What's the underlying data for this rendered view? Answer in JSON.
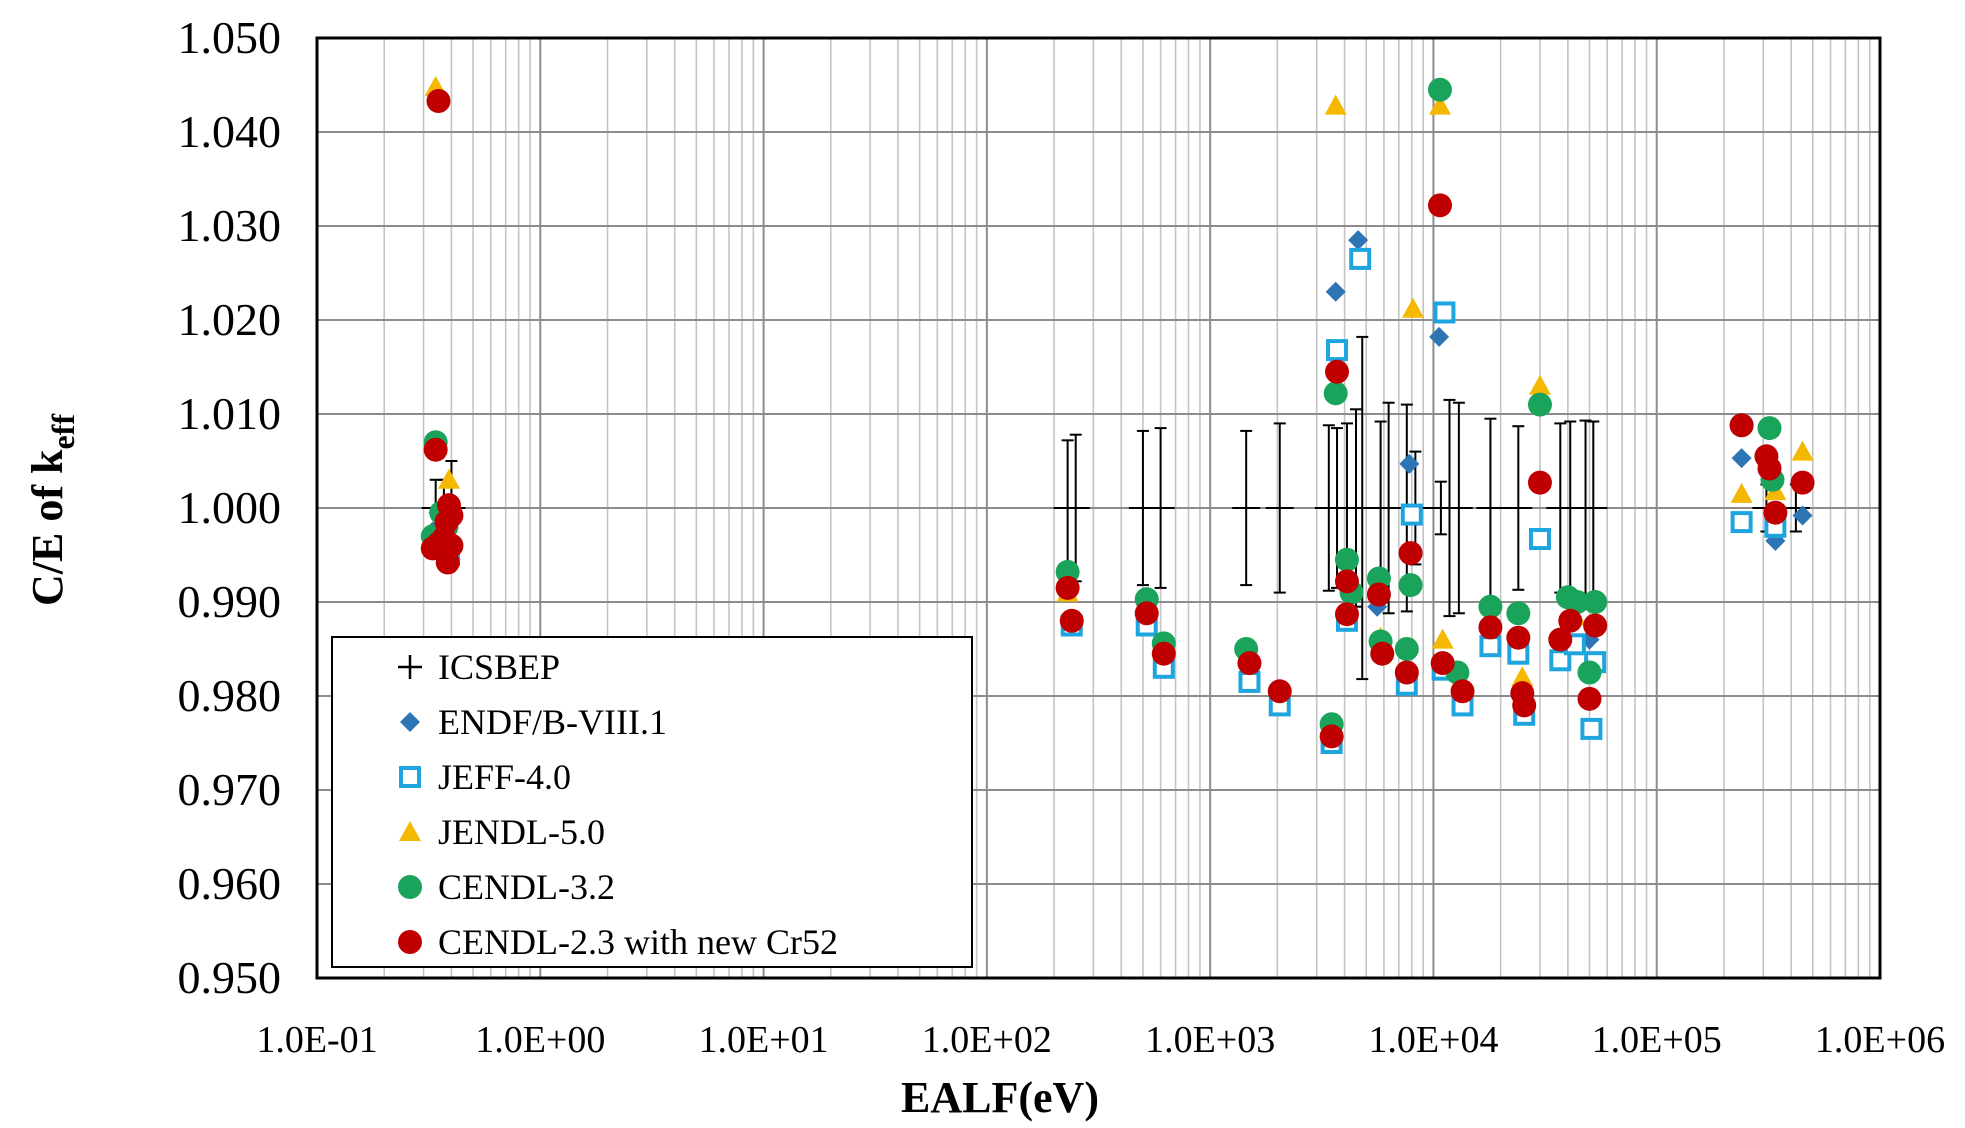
{
  "chart_data": {
    "type": "scatter",
    "title": "",
    "xlabel": "EALF(eV)",
    "ylabel_main": "C/E of k",
    "ylabel_sub": "eff",
    "xscale": "log",
    "xlim": [
      0.1,
      1000000
    ],
    "ylim": [
      0.95,
      1.05
    ],
    "grid": true,
    "legend_position": "lower-left",
    "x_tick_labels": [
      "1.0E-01",
      "1.0E+00",
      "1.0E+01",
      "1.0E+02",
      "1.0E+03",
      "1.0E+04",
      "1.0E+05",
      "1.0E+06"
    ],
    "x_tick_values": [
      0.1,
      1,
      10,
      100,
      1000,
      10000,
      100000,
      1000000
    ],
    "y_tick_labels": [
      "0.950",
      "0.960",
      "0.970",
      "0.980",
      "0.990",
      "1.000",
      "1.010",
      "1.020",
      "1.030",
      "1.040",
      "1.050"
    ],
    "y_tick_values": [
      0.95,
      0.96,
      0.97,
      0.98,
      0.99,
      1.0,
      1.01,
      1.02,
      1.03,
      1.04,
      1.05
    ],
    "icsbep": [
      {
        "x": 0.34,
        "y": 1.0,
        "err": 0.003
      },
      {
        "x": 0.37,
        "y": 1.0,
        "err": 0.003
      },
      {
        "x": 0.4,
        "y": 1.0,
        "err": 0.005
      },
      {
        "x": 230,
        "y": 1.0,
        "err": 0.0072
      },
      {
        "x": 250,
        "y": 1.0,
        "err": 0.0078
      },
      {
        "x": 500,
        "y": 1.0,
        "err": 0.0082
      },
      {
        "x": 600,
        "y": 1.0,
        "err": 0.0085
      },
      {
        "x": 1450,
        "y": 1.0,
        "err": 0.0082
      },
      {
        "x": 2050,
        "y": 1.0,
        "err": 0.009
      },
      {
        "x": 3400,
        "y": 1.0,
        "err": 0.0088
      },
      {
        "x": 3700,
        "y": 1.0,
        "err": 0.0085
      },
      {
        "x": 4100,
        "y": 1.0,
        "err": 0.009
      },
      {
        "x": 4500,
        "y": 1.0,
        "err": 0.0105
      },
      {
        "x": 4800,
        "y": 1.0,
        "err": 0.0182
      },
      {
        "x": 5800,
        "y": 1.0,
        "err": 0.0092
      },
      {
        "x": 6300,
        "y": 1.0,
        "err": 0.0112
      },
      {
        "x": 7600,
        "y": 1.0,
        "err": 0.011
      },
      {
        "x": 8300,
        "y": 1.0,
        "err": 0.006
      },
      {
        "x": 10800,
        "y": 1.0,
        "err": 0.0028
      },
      {
        "x": 11800,
        "y": 1.0,
        "err": 0.0115
      },
      {
        "x": 13000,
        "y": 1.0,
        "err": 0.0112
      },
      {
        "x": 18000,
        "y": 1.0,
        "err": 0.0095
      },
      {
        "x": 24000,
        "y": 1.0,
        "err": 0.0087
      },
      {
        "x": 37000,
        "y": 1.0,
        "err": 0.009
      },
      {
        "x": 41000,
        "y": 1.0,
        "err": 0.0092
      },
      {
        "x": 48000,
        "y": 1.0,
        "err": 0.0093
      },
      {
        "x": 52000,
        "y": 1.0,
        "err": 0.0092
      },
      {
        "x": 310000,
        "y": 1.0,
        "err": 0.0025
      },
      {
        "x": 420000,
        "y": 1.0,
        "err": 0.0025
      }
    ],
    "series": [
      {
        "name": "ENDF/B-VIII.1",
        "marker": "diamond",
        "color": "#2e75b6",
        "points": [
          {
            "x": 0.33,
            "y": 0.9975
          },
          {
            "x": 0.35,
            "y": 0.9995
          },
          {
            "x": 0.38,
            "y": 0.998
          },
          {
            "x": 0.39,
            "y": 0.996
          },
          {
            "x": 240,
            "y": 0.9875
          },
          {
            "x": 520,
            "y": 0.988
          },
          {
            "x": 620,
            "y": 0.9845
          },
          {
            "x": 3650,
            "y": 1.023
          },
          {
            "x": 4600,
            "y": 1.0285
          },
          {
            "x": 7800,
            "y": 1.0047
          },
          {
            "x": 10600,
            "y": 1.0182
          },
          {
            "x": 5600,
            "y": 0.9895
          },
          {
            "x": 50000,
            "y": 0.986
          },
          {
            "x": 240000,
            "y": 1.0053
          },
          {
            "x": 340000,
            "y": 0.9965
          },
          {
            "x": 450000,
            "y": 0.9992
          }
        ]
      },
      {
        "name": "JEFF-4.0",
        "marker": "square",
        "color": "#1ea5df",
        "points": [
          {
            "x": 0.36,
            "y": 0.9965
          },
          {
            "x": 0.39,
            "y": 0.995
          },
          {
            "x": 240,
            "y": 0.9875
          },
          {
            "x": 520,
            "y": 0.9875
          },
          {
            "x": 620,
            "y": 0.983
          },
          {
            "x": 1500,
            "y": 0.9815
          },
          {
            "x": 2050,
            "y": 0.979
          },
          {
            "x": 3500,
            "y": 0.975
          },
          {
            "x": 3700,
            "y": 1.0168
          },
          {
            "x": 4100,
            "y": 0.988
          },
          {
            "x": 4700,
            "y": 1.0265
          },
          {
            "x": 7600,
            "y": 0.9812
          },
          {
            "x": 8000,
            "y": 0.9993
          },
          {
            "x": 11200,
            "y": 1.0208
          },
          {
            "x": 11000,
            "y": 0.9828
          },
          {
            "x": 13500,
            "y": 0.979
          },
          {
            "x": 18000,
            "y": 0.9853
          },
          {
            "x": 24000,
            "y": 0.9845
          },
          {
            "x": 25500,
            "y": 0.978
          },
          {
            "x": 30000,
            "y": 0.9967
          },
          {
            "x": 37000,
            "y": 0.9838
          },
          {
            "x": 43000,
            "y": 0.9855
          },
          {
            "x": 51000,
            "y": 0.9765
          },
          {
            "x": 53000,
            "y": 0.9836
          },
          {
            "x": 240000,
            "y": 0.9985
          },
          {
            "x": 340000,
            "y": 0.998
          }
        ]
      },
      {
        "name": "JENDL-5.0",
        "marker": "triangle",
        "color": "#f5b800",
        "points": [
          {
            "x": 0.34,
            "y": 1.0448
          },
          {
            "x": 0.39,
            "y": 1.003
          },
          {
            "x": 230,
            "y": 0.991
          },
          {
            "x": 3650,
            "y": 1.0428
          },
          {
            "x": 8100,
            "y": 1.0212
          },
          {
            "x": 10700,
            "y": 1.0428
          },
          {
            "x": 11000,
            "y": 0.986
          },
          {
            "x": 5800,
            "y": 0.9862
          },
          {
            "x": 25000,
            "y": 0.982
          },
          {
            "x": 30000,
            "y": 1.013
          },
          {
            "x": 43000,
            "y": 0.9885
          },
          {
            "x": 240000,
            "y": 1.0015
          },
          {
            "x": 340000,
            "y": 1.0018
          },
          {
            "x": 450000,
            "y": 1.006
          }
        ]
      },
      {
        "name": "CENDL-3.2",
        "marker": "circle",
        "color": "#1aa35a",
        "points": [
          {
            "x": 0.34,
            "y": 1.007
          },
          {
            "x": 0.33,
            "y": 0.997
          },
          {
            "x": 0.36,
            "y": 0.9995
          },
          {
            "x": 0.38,
            "y": 0.998
          },
          {
            "x": 230,
            "y": 0.9932
          },
          {
            "x": 520,
            "y": 0.9903
          },
          {
            "x": 620,
            "y": 0.9856
          },
          {
            "x": 1450,
            "y": 0.985
          },
          {
            "x": 3500,
            "y": 0.977
          },
          {
            "x": 3650,
            "y": 1.0122
          },
          {
            "x": 4100,
            "y": 0.9945
          },
          {
            "x": 4300,
            "y": 0.991
          },
          {
            "x": 5700,
            "y": 0.9925
          },
          {
            "x": 5800,
            "y": 0.9858
          },
          {
            "x": 7600,
            "y": 0.985
          },
          {
            "x": 7900,
            "y": 0.9918
          },
          {
            "x": 10700,
            "y": 1.0445
          },
          {
            "x": 12800,
            "y": 0.9825
          },
          {
            "x": 18000,
            "y": 0.9895
          },
          {
            "x": 24000,
            "y": 0.9888
          },
          {
            "x": 30000,
            "y": 1.011
          },
          {
            "x": 40000,
            "y": 0.9905
          },
          {
            "x": 44000,
            "y": 0.99
          },
          {
            "x": 50000,
            "y": 0.9825
          },
          {
            "x": 53000,
            "y": 0.99
          },
          {
            "x": 240000,
            "y": 1.0088
          },
          {
            "x": 320000,
            "y": 1.0085
          },
          {
            "x": 330000,
            "y": 1.003
          }
        ]
      },
      {
        "name": "CENDL-2.3 with new Cr52",
        "marker": "circle",
        "color": "#c00000",
        "points": [
          {
            "x": 0.35,
            "y": 1.0433
          },
          {
            "x": 0.34,
            "y": 1.0062
          },
          {
            "x": 0.33,
            "y": 0.9957
          },
          {
            "x": 0.35,
            "y": 0.9962
          },
          {
            "x": 0.37,
            "y": 0.9968
          },
          {
            "x": 0.38,
            "y": 0.9985
          },
          {
            "x": 0.39,
            "y": 1.0003
          },
          {
            "x": 0.4,
            "y": 0.9992
          },
          {
            "x": 0.385,
            "y": 0.9942
          },
          {
            "x": 0.4,
            "y": 0.996
          },
          {
            "x": 230,
            "y": 0.9915
          },
          {
            "x": 240,
            "y": 0.988
          },
          {
            "x": 520,
            "y": 0.9888
          },
          {
            "x": 620,
            "y": 0.9845
          },
          {
            "x": 1500,
            "y": 0.9835
          },
          {
            "x": 2050,
            "y": 0.9805
          },
          {
            "x": 3500,
            "y": 0.9757
          },
          {
            "x": 3700,
            "y": 1.0145
          },
          {
            "x": 4100,
            "y": 0.9922
          },
          {
            "x": 4100,
            "y": 0.9887
          },
          {
            "x": 5700,
            "y": 0.9908
          },
          {
            "x": 5900,
            "y": 0.9845
          },
          {
            "x": 7600,
            "y": 0.9825
          },
          {
            "x": 7900,
            "y": 0.9952
          },
          {
            "x": 10700,
            "y": 1.0322
          },
          {
            "x": 11000,
            "y": 0.9835
          },
          {
            "x": 13500,
            "y": 0.9805
          },
          {
            "x": 18000,
            "y": 0.9873
          },
          {
            "x": 24000,
            "y": 0.9862
          },
          {
            "x": 25000,
            "y": 0.9803
          },
          {
            "x": 25500,
            "y": 0.979
          },
          {
            "x": 30000,
            "y": 1.0027
          },
          {
            "x": 37000,
            "y": 0.986
          },
          {
            "x": 41000,
            "y": 0.988
          },
          {
            "x": 50000,
            "y": 0.9797
          },
          {
            "x": 53000,
            "y": 0.9875
          },
          {
            "x": 240000,
            "y": 1.0088
          },
          {
            "x": 310000,
            "y": 1.0055
          },
          {
            "x": 320000,
            "y": 1.0042
          },
          {
            "x": 340000,
            "y": 0.9995
          },
          {
            "x": 450000,
            "y": 1.0027
          }
        ]
      }
    ],
    "legend": [
      {
        "label": "ICSBEP",
        "marker": "plus",
        "color": "#000000"
      },
      {
        "label": "ENDF/B-VIII.1",
        "marker": "diamond",
        "color": "#2e75b6"
      },
      {
        "label": "JEFF-4.0",
        "marker": "square",
        "color": "#1ea5df"
      },
      {
        "label": "JENDL-5.0",
        "marker": "triangle",
        "color": "#f5b800"
      },
      {
        "label": "CENDL-3.2",
        "marker": "circle",
        "color": "#1aa35a"
      },
      {
        "label": "CENDL-2.3 with new Cr52",
        "marker": "circle",
        "color": "#c00000"
      }
    ]
  }
}
